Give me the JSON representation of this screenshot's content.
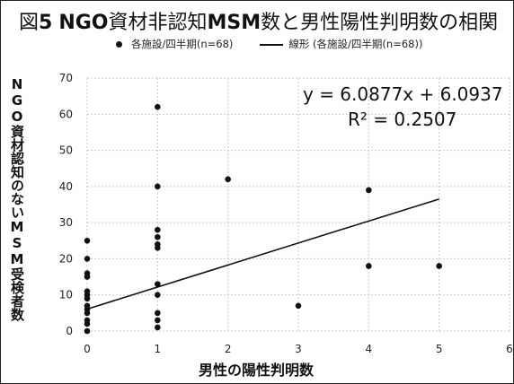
{
  "title": {
    "prefix": "図",
    "number": "5",
    "ngo": "NGO",
    "mid": "資材非認知",
    "msm": "MSM",
    "suffix": "数と男性陽性判明数の相関"
  },
  "legend": {
    "scatter_label": "各施設/四半期(n=68)",
    "line_label": "線形 (各施設/四半期(n=68))"
  },
  "chart_data": {
    "type": "scatter",
    "xlabel": "男性の陽性判明数",
    "ylabel": "NGO資材認知のないMSM受検者数",
    "xlim": [
      0,
      6
    ],
    "ylim": [
      0,
      70
    ],
    "xticks": [
      0,
      1,
      2,
      3,
      4,
      5,
      6
    ],
    "yticks": [
      0,
      10,
      20,
      30,
      40,
      50,
      60,
      70
    ],
    "grid": true,
    "series": [
      {
        "name": "各施設/四半期(n=68)",
        "points": [
          [
            0,
            25
          ],
          [
            0,
            20
          ],
          [
            0,
            16
          ],
          [
            0,
            15
          ],
          [
            0,
            11
          ],
          [
            0,
            10
          ],
          [
            0,
            9
          ],
          [
            0,
            7
          ],
          [
            0,
            6
          ],
          [
            0,
            5
          ],
          [
            0,
            3
          ],
          [
            0,
            2
          ],
          [
            0,
            0
          ],
          [
            1,
            62
          ],
          [
            1,
            40
          ],
          [
            1,
            28
          ],
          [
            1,
            26
          ],
          [
            1,
            24
          ],
          [
            1,
            23
          ],
          [
            1,
            13
          ],
          [
            1,
            10
          ],
          [
            1,
            5
          ],
          [
            1,
            3
          ],
          [
            1,
            1
          ],
          [
            2,
            42
          ],
          [
            3,
            7
          ],
          [
            4,
            39
          ],
          [
            4,
            18
          ],
          [
            5,
            18
          ]
        ]
      }
    ],
    "trendline": {
      "name": "線形 (各施設/四半期(n=68))",
      "slope": 6.0877,
      "intercept": 6.0937,
      "x_range": [
        0,
        5
      ]
    },
    "annotations": {
      "equation": "y = 6.0877x + 6.0937",
      "r_squared": "R² = 0.2507"
    }
  }
}
